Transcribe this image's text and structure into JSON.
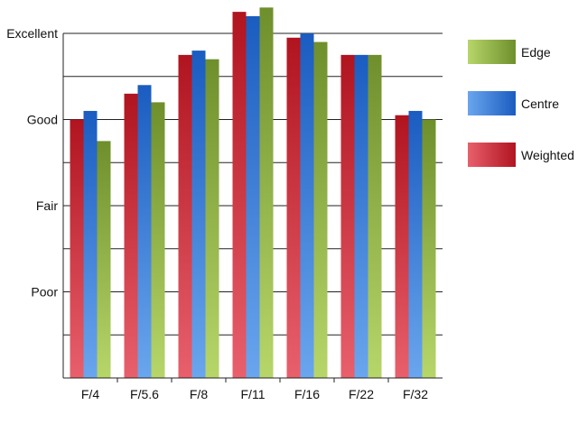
{
  "chart_data": {
    "type": "bar",
    "categories": [
      "F/4",
      "F/5.6",
      "F/8",
      "F/11",
      "F/16",
      "F/22",
      "F/32"
    ],
    "y_tick_labels": [
      "Poor",
      "Fair",
      "Good",
      "Excellent"
    ],
    "y_tick_values": [
      1,
      2,
      3,
      4
    ],
    "ylim": [
      0,
      4
    ],
    "grid": true,
    "legend_position": "right",
    "series": [
      {
        "name": "Weighted",
        "values": [
          3.0,
          3.3,
          3.75,
          4.25,
          3.95,
          3.75,
          3.05
        ]
      },
      {
        "name": "Centre",
        "values": [
          3.1,
          3.4,
          3.8,
          4.2,
          4.0,
          3.75,
          3.1
        ]
      },
      {
        "name": "Edge",
        "values": [
          2.75,
          3.2,
          3.7,
          4.3,
          3.9,
          3.75,
          3.0
        ]
      }
    ],
    "legend_order": [
      "Edge",
      "Centre",
      "Weighted"
    ]
  },
  "colors": {
    "Weighted": [
      "#e8606c",
      "#b0141f"
    ],
    "Centre": [
      "#6aa6ee",
      "#1a5cc0"
    ],
    "Edge": [
      "#b7d66a",
      "#6e8f2c"
    ],
    "axis": "#222222",
    "grid": "#222222"
  }
}
